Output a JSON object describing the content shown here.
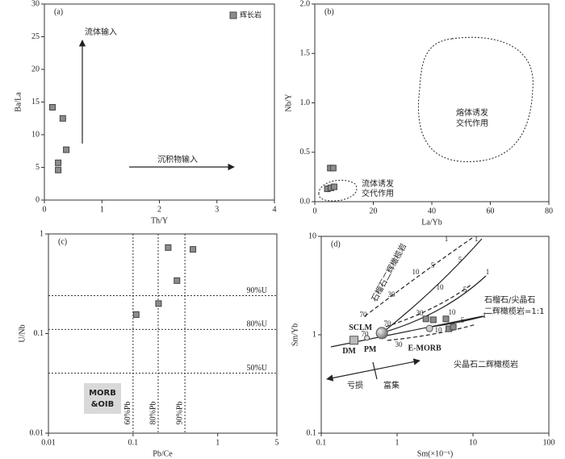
{
  "chart_data": [
    {
      "type": "scatter",
      "panel": "(a)",
      "x_label": "Th/Y",
      "y_label": "Ba/La",
      "xlim": [
        0,
        4
      ],
      "xticks": [
        0,
        1,
        2,
        3,
        4
      ],
      "ylim": [
        0,
        30
      ],
      "yticks": [
        0,
        5,
        10,
        15,
        20,
        25,
        30
      ],
      "legend": "upper right",
      "series": [
        {
          "name": "辉长岩",
          "color": "#8c8c8c",
          "x": [
            0.14,
            0.32,
            0.38,
            0.24,
            0.24
          ],
          "values": [
            14.2,
            12.5,
            7.7,
            5.7,
            4.6
          ]
        }
      ],
      "annotations": [
        "流体输入",
        "沉积物输入"
      ]
    },
    {
      "type": "scatter",
      "panel": "(b)",
      "x_label": "La/Yb",
      "y_label": "Nb/Y",
      "xlim": [
        0,
        80
      ],
      "xticks": [
        0,
        20,
        40,
        60,
        80
      ],
      "ylim": [
        0,
        2
      ],
      "yticks": [
        {
          "value": 0,
          "label": "0.0"
        },
        0.5,
        {
          "value": 1,
          "label": "1.0"
        },
        1.5,
        {
          "value": 2,
          "label": "2.0"
        }
      ],
      "series": [
        {
          "color": "#8c8c8c",
          "x": [
            4.3,
            5.5,
            6.6,
            5.3,
            6.3
          ],
          "values": [
            0.13,
            0.14,
            0.15,
            0.34,
            0.34
          ]
        }
      ],
      "annotations": [
        "熔体诱发",
        "交代作用",
        "流体诱发",
        "交代作用"
      ]
    },
    {
      "type": "scatter",
      "panel": "(c)",
      "x_label": "Pb/Ce",
      "y_label": "U/Nb",
      "xscale": "log",
      "yscale": "log",
      "xlim": [
        0.01,
        5
      ],
      "xticks": [
        0.01,
        0.1,
        1,
        5
      ],
      "ylim": [
        0.01,
        1
      ],
      "yticks": [
        0.01,
        0.1,
        1
      ],
      "series": [
        {
          "color": "#8c8c8c",
          "x": [
            0.26,
            0.51,
            0.33,
            0.2,
            0.109
          ],
          "values": [
            0.73,
            0.7,
            0.34,
            0.2,
            0.155
          ]
        }
      ],
      "hlines": [
        {
          "value": 0.24,
          "label": "90%U"
        },
        {
          "value": 0.11,
          "label": "80%U"
        },
        {
          "value": 0.04,
          "label": "50%U"
        }
      ],
      "vlines": [
        {
          "value": 0.1,
          "label": "60%Pb"
        },
        {
          "value": 0.198,
          "label": "80%Pb"
        },
        {
          "value": 0.41,
          "label": "90%Pb"
        }
      ],
      "annotations": [
        "MORB",
        "&OIB"
      ]
    },
    {
      "type": "scatter",
      "panel": "(d)",
      "x_label": "Sm(×10⁻⁶)",
      "y_label": "Sm/Yb",
      "xscale": "log",
      "yscale": "log",
      "xlim": [
        0.1,
        100
      ],
      "xticks": [
        0.1,
        1,
        10,
        100
      ],
      "ylim": [
        0.1,
        10
      ],
      "yticks": [
        0.1,
        1,
        10
      ],
      "series": [
        {
          "color": "#8c8c8c",
          "x": [
            2.4,
            3.0,
            4.4,
            4.8,
            5.5
          ],
          "values": [
            1.45,
            1.42,
            1.45,
            1.15,
            1.2
          ]
        }
      ],
      "reference_points": {
        "labels": [
          "DM",
          "PM",
          "SCLM",
          "E-MORB"
        ],
        "x": [
          0.27,
          0.4,
          0.63,
          2.67
        ],
        "values": [
          0.88,
          0.93,
          1.04,
          1.16
        ]
      },
      "curve_ticks": [
        1,
        5,
        10,
        30,
        70
      ],
      "annotations": [
        "石榴石二辉橄榄岩",
        "石榴石/尖晶石",
        "二辉橄榄岩=1:1",
        "尖晶石二辉橄榄岩",
        "亏损",
        "富集"
      ]
    }
  ]
}
